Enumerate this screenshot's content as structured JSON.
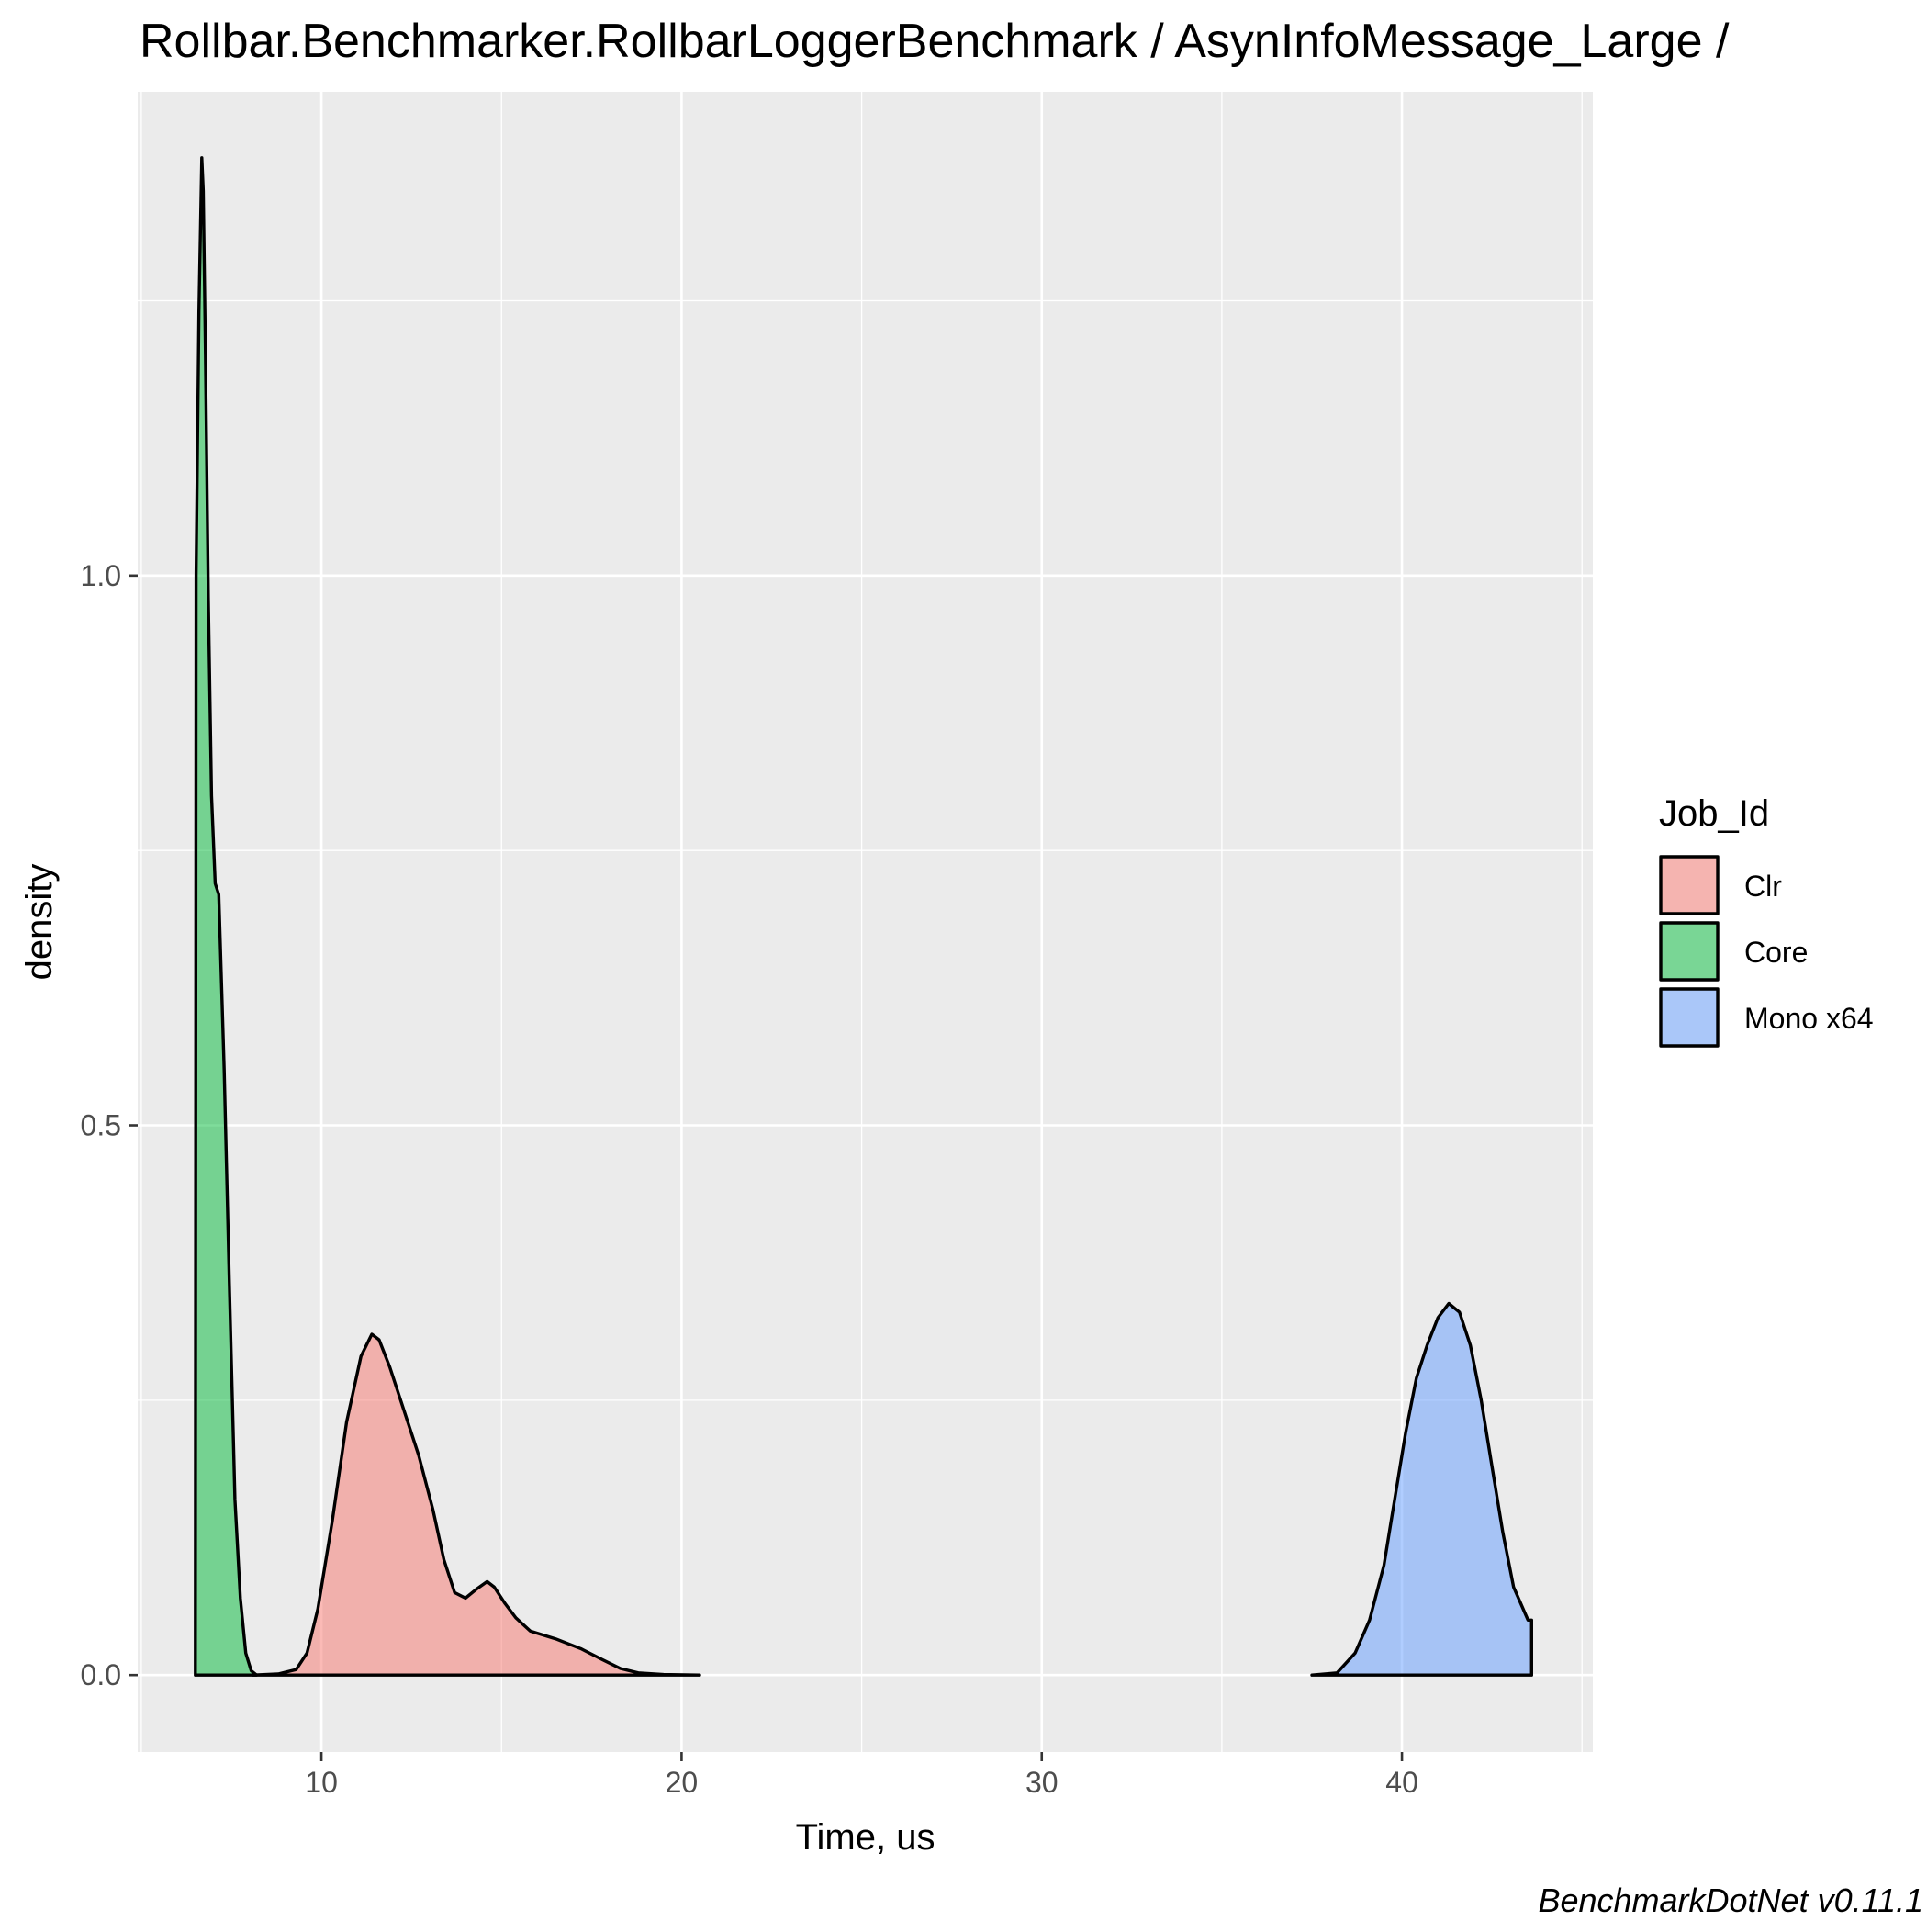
{
  "chart_data": {
    "type": "area",
    "title": "Rollbar.Benchmarker.RollbarLoggerBenchmark / AsynInfoMessage_Large /",
    "xlabel": "Time, us",
    "ylabel": "density",
    "caption": "BenchmarkDotNet v0.11.1",
    "xlim": [
      4.9,
      45.3
    ],
    "ylim": [
      -0.07,
      1.44
    ],
    "x_ticks": [
      10,
      20,
      30,
      40
    ],
    "x_tick_labels": [
      "10",
      "20",
      "30",
      "40"
    ],
    "x_minor_ticks": [
      5,
      15,
      25,
      35,
      45
    ],
    "y_ticks": [
      0.0,
      0.5,
      1.0
    ],
    "y_tick_labels": [
      "0.0",
      "0.5",
      "1.0"
    ],
    "y_minor_ticks": [
      0.25,
      0.75,
      1.25
    ],
    "grid": true,
    "legend": {
      "title": "Job_Id",
      "position": "right"
    },
    "series": [
      {
        "name": "Clr",
        "color": "#F8766D",
        "x": [
          8.1,
          8.8,
          9.3,
          9.6,
          9.9,
          10.3,
          10.7,
          11.1,
          11.4,
          11.6,
          11.9,
          12.3,
          12.7,
          13.1,
          13.4,
          13.7,
          14.0,
          14.3,
          14.6,
          14.8,
          15.1,
          15.4,
          15.8,
          16.5,
          17.2,
          17.8,
          18.3,
          18.8,
          19.5,
          20.5
        ],
        "y": [
          0.0,
          0.001,
          0.005,
          0.02,
          0.06,
          0.14,
          0.23,
          0.29,
          0.31,
          0.305,
          0.28,
          0.24,
          0.2,
          0.15,
          0.105,
          0.075,
          0.07,
          0.078,
          0.085,
          0.08,
          0.065,
          0.052,
          0.04,
          0.033,
          0.024,
          0.014,
          0.006,
          0.002,
          0.0005,
          0.0
        ]
      },
      {
        "name": "Core",
        "color": "#00BA38",
        "x": [
          6.5,
          6.52,
          6.6,
          6.68,
          6.72,
          6.78,
          6.86,
          6.95,
          7.05,
          7.15,
          7.3,
          7.45,
          7.6,
          7.75,
          7.9,
          8.05,
          8.2
        ],
        "y": [
          0.0,
          1.0,
          1.24,
          1.38,
          1.35,
          1.2,
          0.98,
          0.8,
          0.72,
          0.71,
          0.55,
          0.35,
          0.16,
          0.07,
          0.02,
          0.004,
          0.0
        ]
      },
      {
        "name": "Mono x64",
        "color": "#619CFF",
        "x": [
          37.5,
          38.2,
          38.7,
          39.1,
          39.5,
          39.8,
          40.1,
          40.4,
          40.7,
          41.0,
          41.3,
          41.6,
          41.9,
          42.2,
          42.5,
          42.8,
          43.1,
          43.5,
          43.6
        ],
        "y": [
          0.0,
          0.002,
          0.02,
          0.05,
          0.1,
          0.16,
          0.22,
          0.27,
          0.3,
          0.325,
          0.338,
          0.33,
          0.3,
          0.25,
          0.19,
          0.13,
          0.08,
          0.05,
          0.05
        ]
      }
    ]
  }
}
